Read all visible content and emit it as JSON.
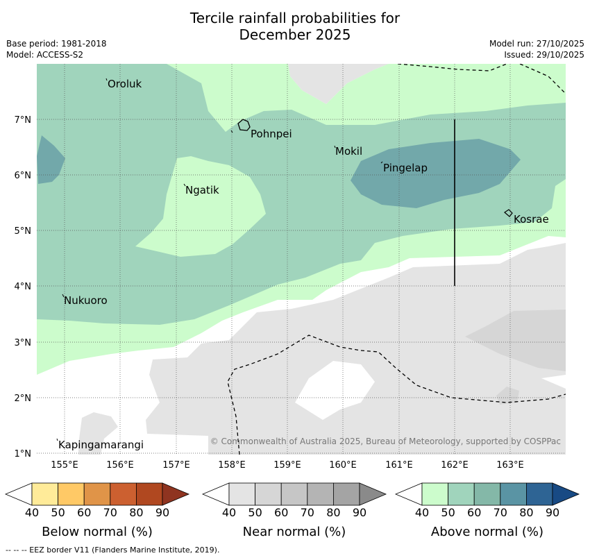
{
  "title_line1": "Tercile rainfall probabilities for",
  "title_line2": "December 2025",
  "meta": {
    "base_period": "Base period: 1981-2018",
    "model": "Model: ACCESS-S2",
    "model_run": "Model run: 27/10/2025",
    "issued": "Issued: 29/10/2025"
  },
  "axes": {
    "lon_ticks": [
      "155°E",
      "156°E",
      "157°E",
      "158°E",
      "159°E",
      "160°E",
      "161°E",
      "162°E",
      "163°E"
    ],
    "lat_ticks": [
      "7°N",
      "6°N",
      "5°N",
      "4°N",
      "3°N",
      "2°N",
      "1°N"
    ]
  },
  "places": [
    "Oroluk",
    "Pohnpei",
    "Mokil",
    "Pingelap",
    "Ngatik",
    "Kosrae",
    "Nukuoro",
    "Kapingamarangi"
  ],
  "copyright": "© Commonwealth of Australia 2025, Bureau of Meteorology, supported by COSPPac",
  "colorbars": [
    {
      "title": "Below normal (%)",
      "ticks": [
        "40",
        "50",
        "60",
        "70",
        "80",
        "90"
      ],
      "colors": [
        "#ffffff",
        "#ffeb99",
        "#ffc966",
        "#e09448",
        "#cc6030",
        "#b04820",
        "#8f3420"
      ]
    },
    {
      "title": "Near normal (%)",
      "ticks": [
        "40",
        "50",
        "60",
        "70",
        "80",
        "90"
      ],
      "colors": [
        "#ffffff",
        "#e4e4e4",
        "#d6d6d6",
        "#c6c6c6",
        "#b4b4b4",
        "#a4a4a4",
        "#8a8a8a"
      ]
    },
    {
      "title": "Above normal (%)",
      "ticks": [
        "40",
        "50",
        "60",
        "70",
        "80",
        "90"
      ],
      "colors": [
        "#ffffff",
        "#ccfccc",
        "#a0d4bc",
        "#84b8a8",
        "#5a94a4",
        "#2e6494",
        "#184a84"
      ]
    }
  ],
  "footer": "--  --  -- EEZ border V11 (Flanders Marine Institute, 2019)."
}
